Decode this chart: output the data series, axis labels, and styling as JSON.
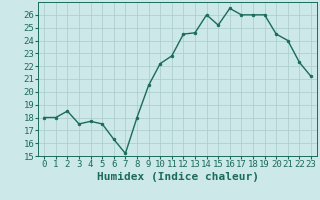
{
  "x": [
    0,
    1,
    2,
    3,
    4,
    5,
    6,
    7,
    8,
    9,
    10,
    11,
    12,
    13,
    14,
    15,
    16,
    17,
    18,
    19,
    20,
    21,
    22,
    23
  ],
  "y": [
    18,
    18,
    18.5,
    17.5,
    17.7,
    17.5,
    16.3,
    15.2,
    18,
    20.5,
    22.2,
    22.8,
    24.5,
    24.6,
    26,
    25.2,
    26.5,
    26,
    26,
    26,
    24.5,
    24,
    22.3,
    21.2
  ],
  "line_color": "#1a6b5a",
  "marker": "o",
  "marker_size": 2.0,
  "bg_color": "#cce8e8",
  "grid_color": "#aacccc",
  "xlabel": "Humidex (Indice chaleur)",
  "tick_fontsize": 6.5,
  "xlabel_fontsize": 8,
  "ylim": [
    15,
    27
  ],
  "xlim": [
    -0.5,
    23.5
  ],
  "yticks": [
    15,
    16,
    17,
    18,
    19,
    20,
    21,
    22,
    23,
    24,
    25,
    26
  ],
  "xticks": [
    0,
    1,
    2,
    3,
    4,
    5,
    6,
    7,
    8,
    9,
    10,
    11,
    12,
    13,
    14,
    15,
    16,
    17,
    18,
    19,
    20,
    21,
    22,
    23
  ],
  "line_width": 1.0
}
